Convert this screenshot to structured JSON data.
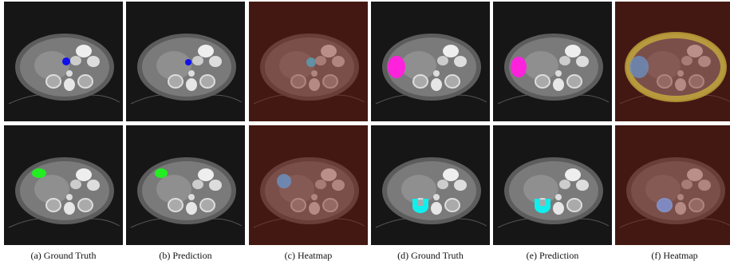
{
  "figure": {
    "captions": [
      "(a) Ground Truth",
      "(b) Prediction",
      "(c) Heatmap",
      "(d) Ground Truth",
      "(e) Prediction",
      "(f) Heatmap"
    ]
  }
}
